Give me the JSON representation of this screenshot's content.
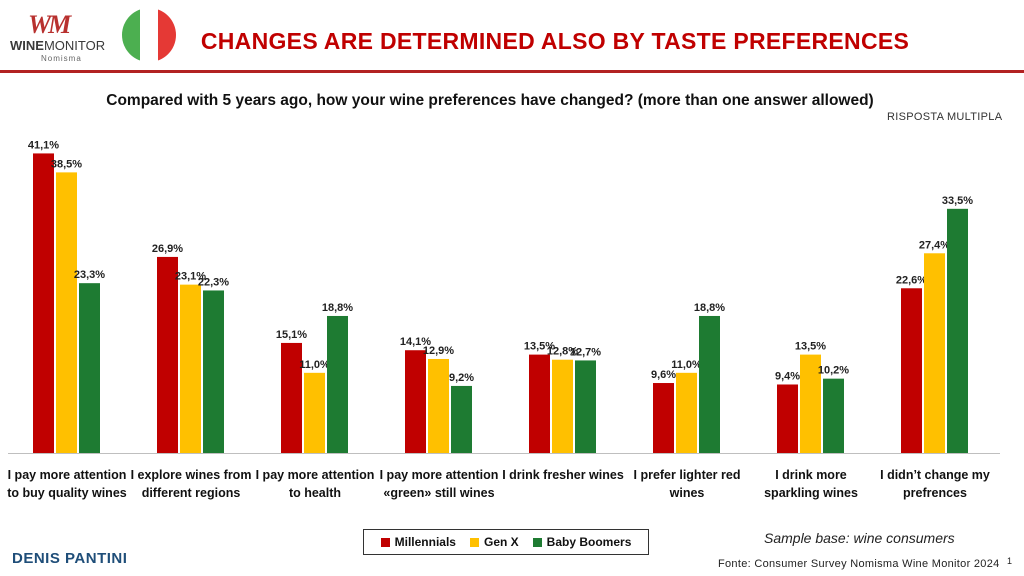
{
  "logo": {
    "mark": "WM",
    "name_bold": "WINE",
    "name_thin": "MONITOR",
    "sub": "Nomisma"
  },
  "flag_colors": [
    "#4caf50",
    "#ffffff",
    "#e53935"
  ],
  "title": "CHANGES ARE DETERMINED ALSO BY TASTE PREFERENCES",
  "question": "Compared with 5 years ago, how your wine preferences have changed? (more than one answer allowed)",
  "risposta": "RISPOSTA MULTIPLA",
  "sample_base": "Sample base: wine consumers",
  "author": "DENIS PANTINI",
  "source": "Fonte: Consumer Survey Nomisma Wine Monitor 2024",
  "page_number": "1",
  "chart_data": {
    "type": "bar",
    "title": "Compared with 5 years ago, how your wine preferences have changed? (more than one answer allowed)",
    "categories": [
      "I pay more attention to buy quality wines",
      "I explore wines from different regions",
      "I pay more attention to health",
      "I pay more attention «green» still wines",
      "I drink fresher wines",
      "I prefer lighter red wines",
      "I drink more sparkling wines",
      "I didn’t change my prefrences"
    ],
    "series": [
      {
        "name": "Millennials",
        "color": "#c00000",
        "values": [
          41.1,
          26.9,
          15.1,
          14.1,
          13.5,
          9.6,
          9.4,
          22.6
        ],
        "labels": [
          "41,1%",
          "26,9%",
          "15,1%",
          "14,1%",
          "13,5%",
          "9,6%",
          "9,4%",
          "22,6%"
        ]
      },
      {
        "name": "Gen X",
        "color": "#ffc000",
        "values": [
          38.5,
          23.1,
          11.0,
          12.9,
          12.8,
          11.0,
          13.5,
          27.4
        ],
        "labels": [
          "38,5%",
          "23,1%",
          "11,0%",
          "12,9%",
          "12,8%",
          "11,0%",
          "13,5%",
          "27,4%"
        ]
      },
      {
        "name": "Baby Boomers",
        "color": "#1e7b32",
        "values": [
          23.3,
          22.3,
          18.8,
          9.2,
          12.7,
          18.8,
          10.2,
          33.5
        ],
        "labels": [
          "23,3%",
          "22,3%",
          "18,8%",
          "9,2%",
          "12,7%",
          "18,8%",
          "10,2%",
          "33,5%"
        ]
      }
    ],
    "ylim": [
      0,
      45
    ],
    "grid": false,
    "legend": "bottom-center"
  }
}
